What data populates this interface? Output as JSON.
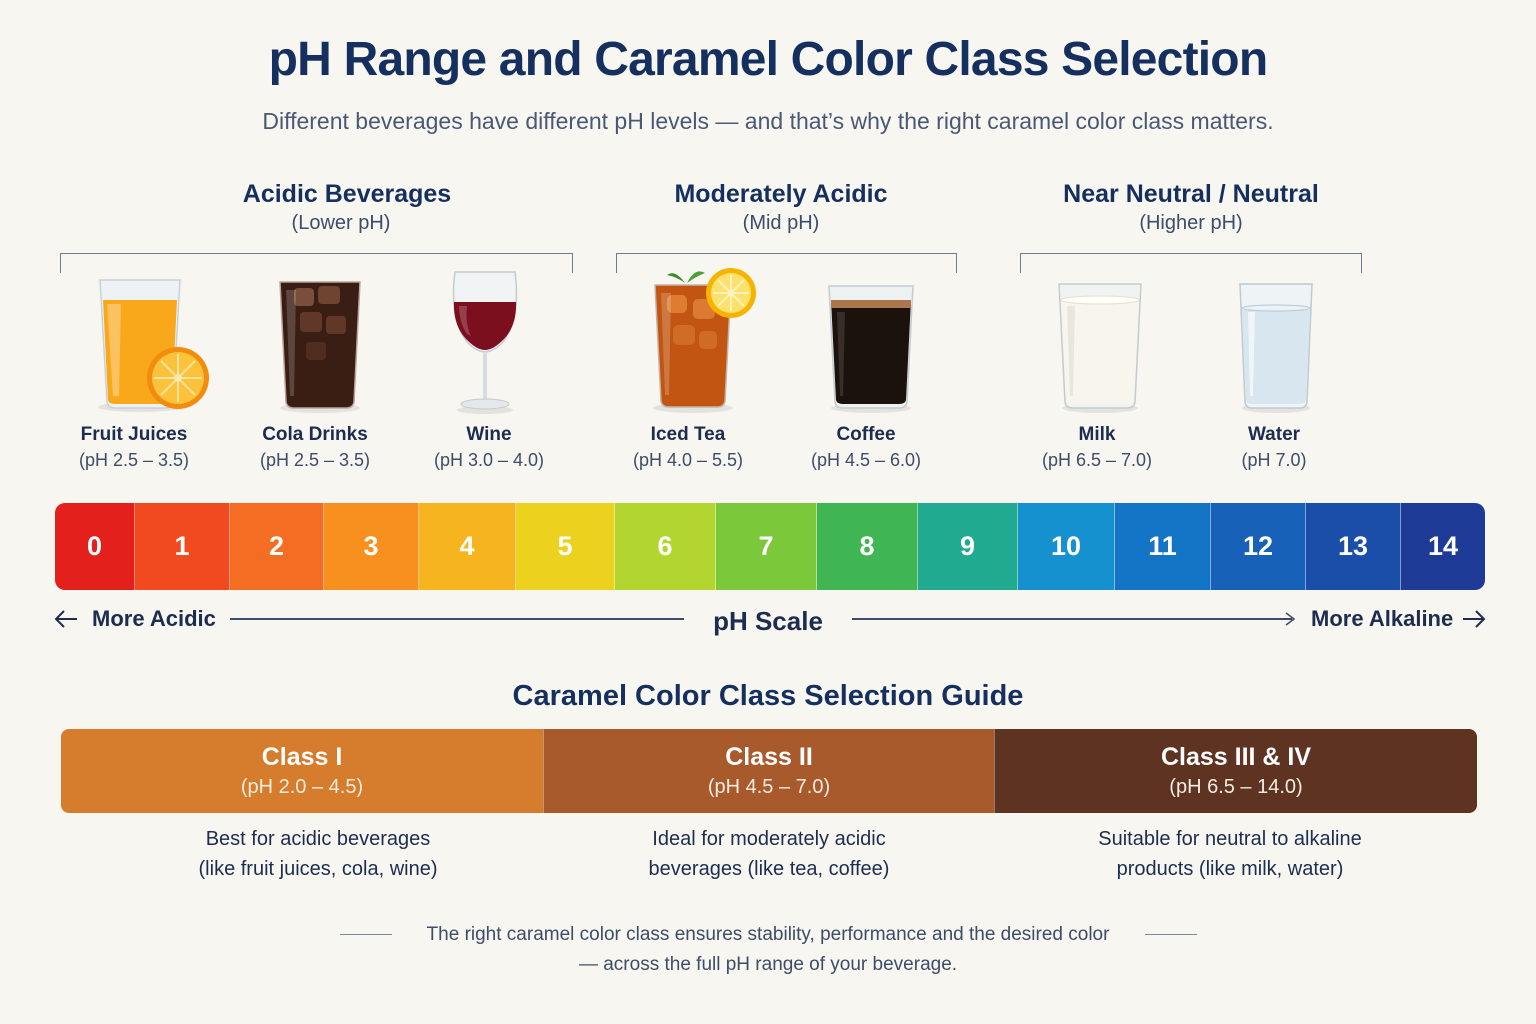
{
  "title": "pH Range and Caramel Color Class Selection",
  "subtitle": "Different beverages have different pH levels — and that’s why the right caramel color class matters.",
  "groups": [
    {
      "title": "Acidic Beverages",
      "sub": "(Lower pH)"
    },
    {
      "title": "Moderately Acidic",
      "sub": "(Mid pH)"
    },
    {
      "title": "Near Neutral / Neutral",
      "sub": "(Higher pH)"
    }
  ],
  "beverages": [
    {
      "name": "Fruit Juices",
      "ph": "(pH 2.5 – 3.5)",
      "icon": "orange-juice-glass-icon"
    },
    {
      "name": "Cola Drinks",
      "ph": "(pH 2.5 – 3.5)",
      "icon": "cola-glass-icon"
    },
    {
      "name": "Wine",
      "ph": "(pH 3.0 – 4.0)",
      "icon": "wine-glass-icon"
    },
    {
      "name": "Iced Tea",
      "ph": "(pH 4.0 – 5.5)",
      "icon": "iced-tea-glass-icon"
    },
    {
      "name": "Coffee",
      "ph": "(pH 4.5 – 6.0)",
      "icon": "coffee-glass-icon"
    },
    {
      "name": "Milk",
      "ph": "(pH 6.5 – 7.0)",
      "icon": "milk-glass-icon"
    },
    {
      "name": "Water",
      "ph": "(pH 7.0)",
      "icon": "water-glass-icon"
    }
  ],
  "scale": {
    "values": [
      "0",
      "1",
      "2",
      "3",
      "4",
      "5",
      "6",
      "7",
      "8",
      "9",
      "10",
      "11",
      "12",
      "13",
      "14"
    ],
    "colors": [
      "#e3201b",
      "#f04a1e",
      "#f56d22",
      "#f8901f",
      "#f6b51e",
      "#ecd21f",
      "#b3d530",
      "#7cc83b",
      "#3fb553",
      "#20aa8f",
      "#1591cf",
      "#1374c6",
      "#1761b9",
      "#1a4ea8",
      "#1d3b96"
    ],
    "label": "pH Scale",
    "left_label": "More Acidic",
    "right_label": "More Alkaline"
  },
  "guide": {
    "title": "Caramel Color Class Selection Guide",
    "classes": [
      {
        "name": "Class I",
        "range": "(pH 2.0 – 4.5)",
        "desc1": "Best for acidic beverages",
        "desc2": "(like fruit juices, cola, wine)",
        "color": "#d57d2c"
      },
      {
        "name": "Class II",
        "range": "(pH 4.5 – 7.0)",
        "desc1": "Ideal for moderately acidic",
        "desc2": "beverages (like tea, coffee)",
        "color": "#a95a2c"
      },
      {
        "name": "Class III & IV",
        "range": "(pH 6.5 – 14.0)",
        "desc1": "Suitable for neutral to alkaline",
        "desc2": "products (like milk, water)",
        "color": "#5e3321"
      }
    ]
  },
  "footer": {
    "line1": "The right caramel color class ensures stability, performance and the desired color",
    "line2": "— across the full pH range of your beverage."
  }
}
